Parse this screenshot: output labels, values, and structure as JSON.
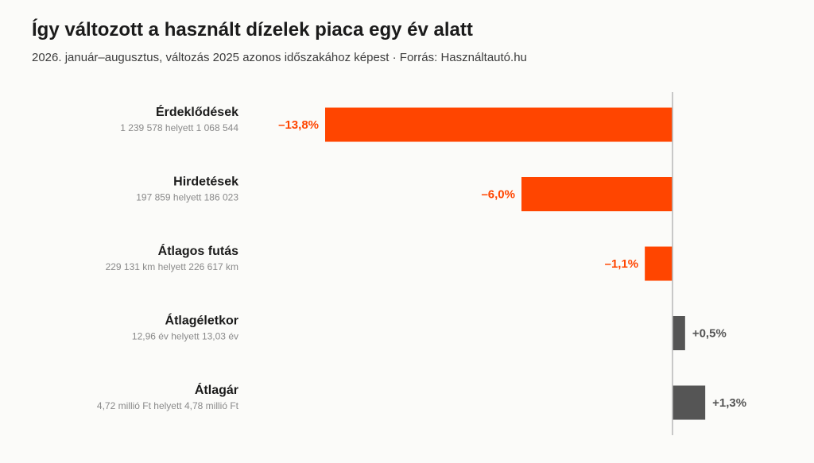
{
  "colors": {
    "negative": "#ff4500",
    "positive": "#555555",
    "axis": "#b8b8b8"
  },
  "chart_data": {
    "type": "bar",
    "orientation": "horizontal",
    "title": "Így változott a használt dízelek piaca egy év alatt",
    "subtitle": "2026. január–augusztus, változás 2025 azonos időszakához képest · Forrás: Használtautó.hu",
    "categories": [
      "Érdeklődések",
      "Hirdetések",
      "Átlagos futás",
      "Átlagéletkor",
      "Átlagár"
    ],
    "details": [
      "1 239 578 helyett 1 068 544",
      "197 859 helyett 186 023",
      "229 131 km helyett 226 617 km",
      "12,96 év helyett 13,03 év",
      "4,72 millió Ft helyett 4,78 millió Ft"
    ],
    "values": [
      -13.8,
      -6.0,
      -1.1,
      0.5,
      1.3
    ],
    "value_labels": [
      "–13,8%",
      "–6,0%",
      "–1,1%",
      "+0,5%",
      "+1,3%"
    ],
    "unit": "%",
    "xlim": [
      -13.8,
      1.3
    ],
    "grid": false,
    "legend": "none"
  }
}
